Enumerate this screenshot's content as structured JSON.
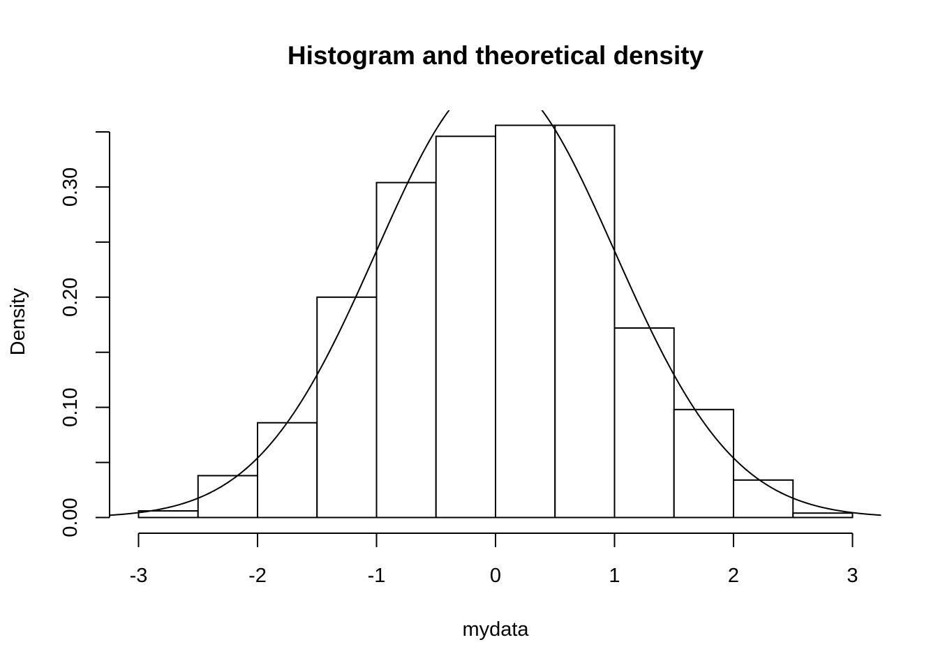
{
  "chart_data": {
    "type": "bar",
    "title": "Histogram and theoretical density",
    "xlabel": "mydata",
    "ylabel": "Density",
    "xlim": [
      -3.24,
      3.24
    ],
    "ylim": [
      0,
      0.37
    ],
    "x_ticks": [
      -3,
      -2,
      -1,
      0,
      1,
      2,
      3
    ],
    "x_tick_labels": [
      "-3",
      "-2",
      "-1",
      "0",
      "1",
      "2",
      "3"
    ],
    "y_ticks": [
      0,
      0.05,
      0.1,
      0.15,
      0.2,
      0.25,
      0.3,
      0.35
    ],
    "y_tick_labels": [
      "0.00",
      "",
      "0.10",
      "",
      "0.20",
      "",
      "0.30",
      ""
    ],
    "bins": [
      {
        "start": -3.0,
        "end": -2.5,
        "density": 0.006
      },
      {
        "start": -2.5,
        "end": -2.0,
        "density": 0.038
      },
      {
        "start": -2.0,
        "end": -1.5,
        "density": 0.086
      },
      {
        "start": -1.5,
        "end": -1.0,
        "density": 0.2
      },
      {
        "start": -1.0,
        "end": -0.5,
        "density": 0.304
      },
      {
        "start": -0.5,
        "end": 0.0,
        "density": 0.346
      },
      {
        "start": 0.0,
        "end": 0.5,
        "density": 0.356
      },
      {
        "start": 0.5,
        "end": 1.0,
        "density": 0.356
      },
      {
        "start": 1.0,
        "end": 1.5,
        "density": 0.172
      },
      {
        "start": 1.5,
        "end": 2.0,
        "density": 0.098
      },
      {
        "start": 2.0,
        "end": 2.5,
        "density": 0.034
      },
      {
        "start": 2.5,
        "end": 3.0,
        "density": 0.004
      }
    ],
    "density_curve": {
      "distribution": "normal",
      "mean": 0,
      "sd": 1,
      "x_range": [
        -3.24,
        3.24
      ]
    },
    "grid": false,
    "legend": "none"
  }
}
